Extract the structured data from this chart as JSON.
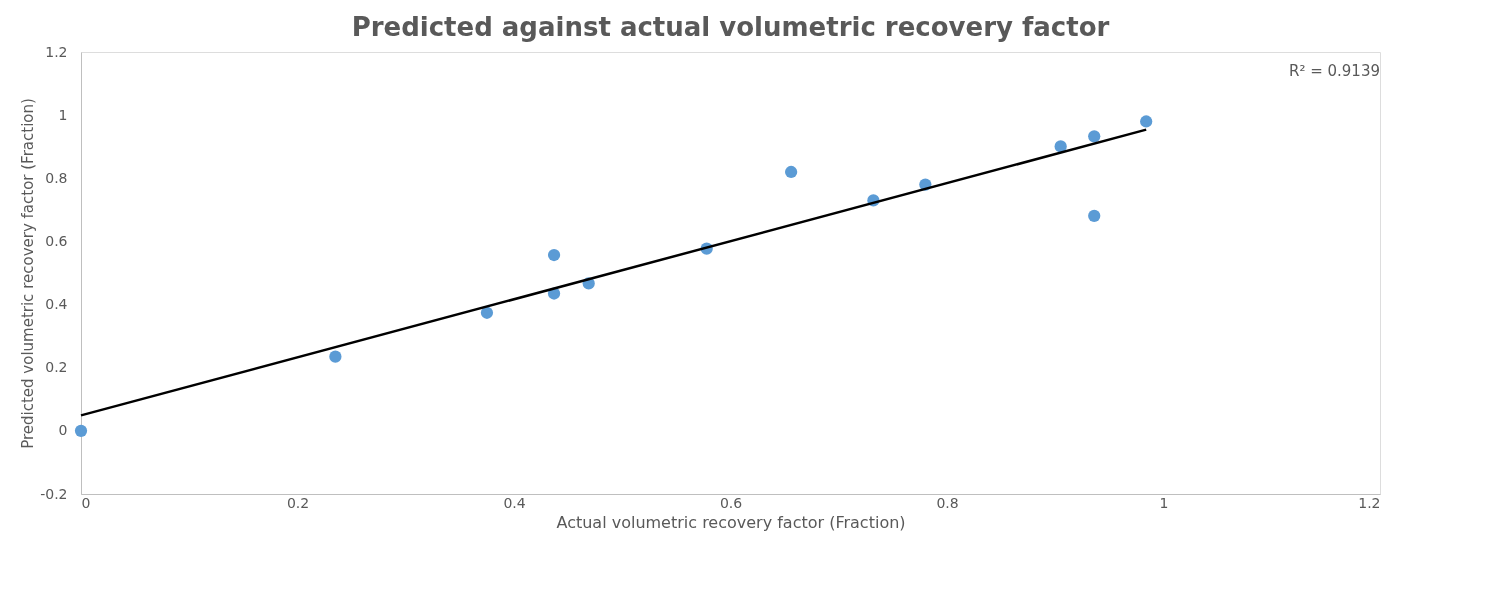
{
  "chart_data": {
    "type": "scatter",
    "title": "Predicted against actual volumetric recovery factor",
    "xlabel": "Actual volumetric recovery factor (Fraction)",
    "ylabel": "Predicted volumetric recovery factor (Fraction)",
    "x": [
      0,
      0.235,
      0.375,
      0.437,
      0.437,
      0.469,
      0.578,
      0.656,
      0.732,
      0.78,
      0.905,
      0.936,
      0.936,
      0.984
    ],
    "series": [
      {
        "color": "#5b9bd5",
        "values": [
          0,
          0.235,
          0.374,
          0.557,
          0.435,
          0.467,
          0.577,
          0.82,
          0.73,
          0.78,
          0.901,
          0.933,
          0.681,
          0.98
        ]
      },
      {
        "type": "line",
        "marker": "none",
        "color": "#000000",
        "x": [
          0,
          0.984
        ],
        "values": [
          0.049,
          0.954
        ]
      }
    ],
    "xlim": [
      0,
      1.2
    ],
    "xticks": [
      0,
      0.2,
      0.4,
      0.6,
      0.8,
      1,
      1.2
    ],
    "ylim": [
      -0.2,
      1.2
    ],
    "yticks": [
      -0.2,
      0,
      0.2,
      0.4,
      0.6,
      0.8,
      1,
      1.2
    ],
    "annotations": [
      "R² = 0.9139"
    ],
    "grid": false,
    "marker": "circle",
    "line_style": "solid"
  }
}
